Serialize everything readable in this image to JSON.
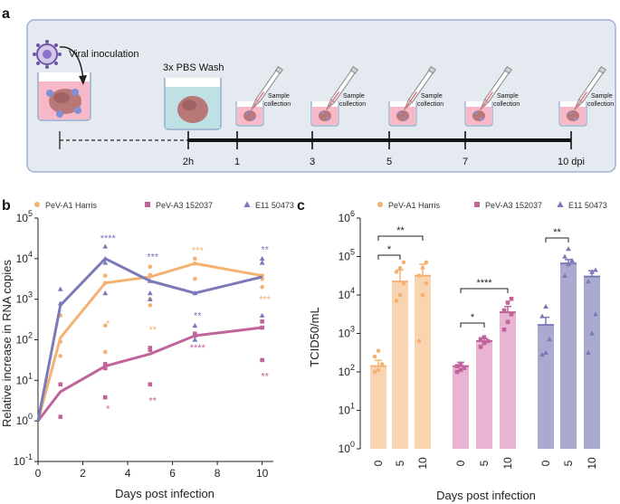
{
  "panels": {
    "a": "a",
    "b": "b",
    "c": "c"
  },
  "schematic": {
    "inoculation_label": "Viral inoculation",
    "wash_label": "3x PBS Wash",
    "sample_label_line1": "Sample",
    "sample_label_line2": "collection",
    "timepoints": [
      "2h",
      "1",
      "3",
      "5",
      "7",
      "10 dpi"
    ]
  },
  "colors": {
    "harris": "#f4b272",
    "pev_a3": "#c0649a",
    "e11": "#7a7ab8",
    "harris_bar": "#f8d4b0",
    "pev_a3_bar": "#e8b4d2",
    "e11_bar": "#aaaad0",
    "panel_bg": "#e5e9f0",
    "panel_border": "#9fb3d6"
  },
  "chart_data": [
    {
      "type": "line",
      "title": "",
      "xlabel": "Days post infection",
      "ylabel": "Relative increase in RNA copies",
      "x_ticks": [
        "0",
        "2",
        "4",
        "6",
        "8",
        "10"
      ],
      "y_ticks": [
        "10^-1",
        "10^0",
        "10^1",
        "10^2",
        "10^3",
        "10^4",
        "10^5"
      ],
      "xlim": [
        0,
        10.5
      ],
      "ylim_log10": [
        -1,
        5
      ],
      "legend": [
        "PeV-A1 Harris",
        "PeV-A3 152037",
        "E11 50473"
      ],
      "x": [
        0,
        1,
        3,
        5,
        7,
        10
      ],
      "series": [
        {
          "name": "PeV-A1 Harris",
          "key": "harris",
          "marker": "circle",
          "mean_log10": [
            0,
            2.05,
            3.4,
            3.55,
            3.88,
            3.58
          ],
          "points_log10": [
            [
              1,
              1.6
            ],
            [
              1,
              1.95
            ],
            [
              1,
              2.6
            ],
            [
              3,
              1.7
            ],
            [
              3,
              2.35
            ],
            [
              3,
              3.4
            ],
            [
              3,
              3.58
            ],
            [
              5,
              2.85
            ],
            [
              5,
              3.0
            ],
            [
              5,
              3.6
            ],
            [
              5,
              3.8
            ],
            [
              7,
              3.5
            ],
            [
              7,
              3.88
            ],
            [
              7,
              4.0
            ],
            [
              10,
              3.5
            ],
            [
              10,
              3.58
            ],
            [
              10,
              3.3
            ]
          ],
          "significance": [
            {
              "x": 3,
              "label": "*"
            },
            {
              "x": 5,
              "label": "**"
            },
            {
              "x": 7,
              "label": "***"
            },
            {
              "x": 10,
              "label": "***"
            }
          ]
        },
        {
          "name": "PeV-A3 152037",
          "key": "pev_a3",
          "marker": "square",
          "mean_log10": [
            0,
            0.72,
            1.35,
            1.65,
            2.1,
            2.3
          ],
          "points_log10": [
            [
              1,
              0.1
            ],
            [
              1,
              0.9
            ],
            [
              3,
              0.58
            ],
            [
              3,
              1.3
            ],
            [
              3,
              1.4
            ],
            [
              5,
              0.9
            ],
            [
              5,
              1.75
            ],
            [
              5,
              1.8
            ],
            [
              7,
              2.1
            ],
            [
              7,
              2.15
            ],
            [
              10,
              1.5
            ],
            [
              10,
              2.3
            ],
            [
              10,
              2.45
            ]
          ],
          "significance": [
            {
              "x": 3,
              "label": "*"
            },
            {
              "x": 5,
              "label": "**"
            },
            {
              "x": 7,
              "label": "****"
            },
            {
              "x": 10,
              "label": "**"
            }
          ]
        },
        {
          "name": "E11 50473",
          "key": "e11",
          "marker": "triangle",
          "mean_log10": [
            0,
            2.85,
            4.0,
            3.45,
            3.15,
            3.55
          ],
          "points_log10": [
            [
              1,
              2.9
            ],
            [
              1,
              3.25
            ],
            [
              3,
              3.15
            ],
            [
              3,
              3.9
            ],
            [
              3,
              4.0
            ],
            [
              3,
              4.3
            ],
            [
              5,
              3.0
            ],
            [
              5,
              3.15
            ],
            [
              5,
              3.45
            ],
            [
              7,
              2.0
            ],
            [
              7,
              2.35
            ],
            [
              7,
              3.15
            ],
            [
              10,
              2.6
            ],
            [
              10,
              3.9
            ],
            [
              10,
              4.0
            ]
          ],
          "significance": [
            {
              "x": 3,
              "label": "****"
            },
            {
              "x": 5,
              "label": "***"
            },
            {
              "x": 7,
              "label": "**"
            },
            {
              "x": 10,
              "label": "**"
            }
          ]
        }
      ]
    },
    {
      "type": "bar",
      "title": "",
      "xlabel": "Days post infection",
      "ylabel": "TCID50/mL",
      "categories": [
        "0",
        "5",
        "10",
        "0",
        "5",
        "10",
        "0",
        "5",
        "10"
      ],
      "y_ticks": [
        "10^0",
        "10^1",
        "10^2",
        "10^3",
        "10^4",
        "10^5",
        "10^6"
      ],
      "ylim_log10": [
        0,
        6
      ],
      "legend": [
        "PeV-A1 Harris",
        "PeV-A3 152037",
        "E11 50473"
      ],
      "groups": [
        {
          "name": "PeV-A1 Harris",
          "key": "harris",
          "marker": "circle",
          "mean_log10": [
            2.15,
            4.35,
            4.5
          ],
          "err_log10": [
            0.15,
            0.3,
            0.3
          ],
          "points_log10": [
            [
              2.0,
              2.05,
              2.2,
              2.4,
              2.55
            ],
            [
              3.85,
              4.0,
              4.3,
              4.6,
              4.7,
              4.85
            ],
            [
              2.8,
              4.0,
              4.3,
              4.5,
              4.7,
              4.85
            ]
          ]
        },
        {
          "name": "PeV-A3 152037",
          "key": "pev_a3",
          "marker": "square",
          "mean_log10": [
            2.15,
            2.8,
            3.55
          ],
          "err_log10": [
            0.1,
            0.07,
            0.15
          ],
          "points_log10": [
            [
              2.0,
              2.05,
              2.1,
              2.15,
              2.2
            ],
            [
              2.65,
              2.75,
              2.8,
              2.85,
              2.9
            ],
            [
              3.1,
              3.3,
              3.5,
              3.6,
              3.8,
              3.9
            ]
          ]
        },
        {
          "name": "E11 50473",
          "key": "e11",
          "marker": "triangle",
          "mean_log10": [
            3.22,
            4.82,
            4.48
          ],
          "err_log10": [
            0.2,
            0.1,
            0.15
          ],
          "points_log10": [
            [
              2.45,
              2.5,
              2.85,
              3.45,
              3.7
            ],
            [
              4.5,
              4.8,
              4.9,
              5.0,
              5.2
            ],
            [
              2.5,
              3.0,
              3.5,
              4.35,
              4.6,
              4.65
            ]
          ]
        }
      ],
      "comparisons": [
        {
          "group": 0,
          "from": 0,
          "to": 1,
          "label": "*",
          "level": 0
        },
        {
          "group": 0,
          "from": 0,
          "to": 2,
          "label": "**",
          "level": 1
        },
        {
          "group": 1,
          "from": 0,
          "to": 1,
          "label": "*",
          "level": 0
        },
        {
          "group": 1,
          "from": 0,
          "to": 2,
          "label": "****",
          "level": 1
        },
        {
          "group": 2,
          "from": 0,
          "to": 1,
          "label": "**",
          "level": 1
        }
      ]
    }
  ]
}
